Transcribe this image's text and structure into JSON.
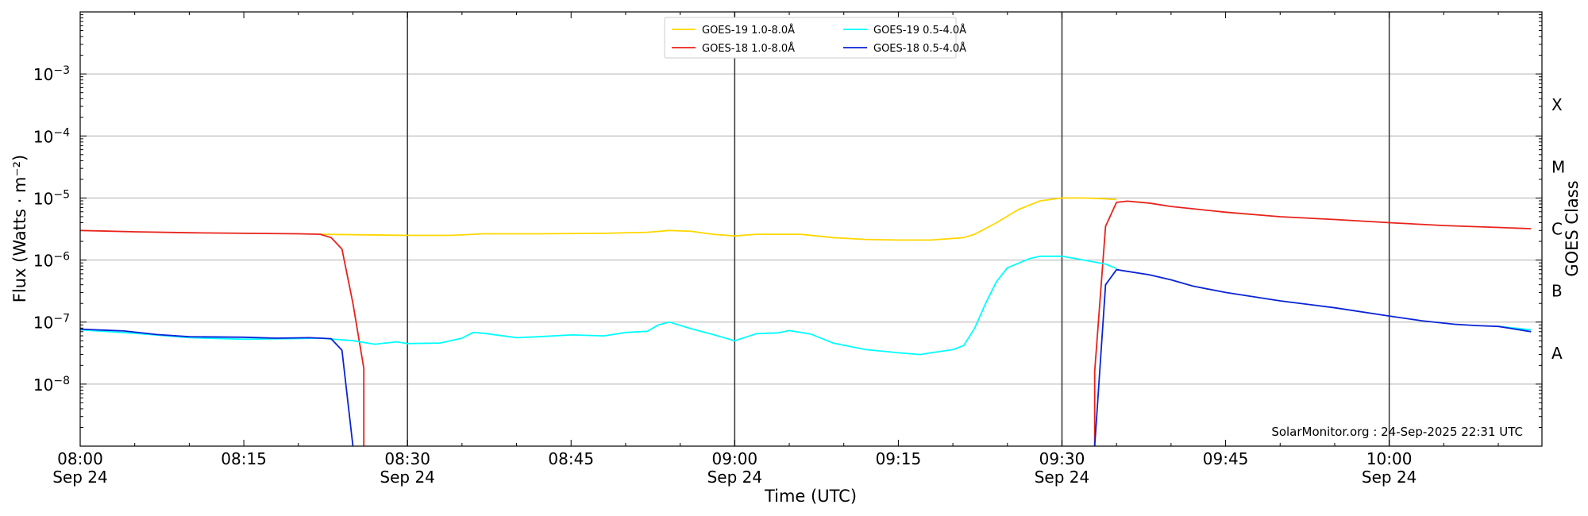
{
  "chart_data": {
    "type": "line",
    "title": "",
    "xlabel": "Time (UTC)",
    "ylabel": "Flux (Watts · m⁻²)",
    "y2label": "GOES Class",
    "yscale": "log",
    "ylim": [
      1e-09,
      0.01
    ],
    "xlim": [
      "2025-09-24 08:00",
      "2025-09-24 10:14"
    ],
    "x_ticks": [
      {
        "time": "08:00",
        "label": "08:00",
        "sub": "Sep 24"
      },
      {
        "time": "08:15",
        "label": "08:15",
        "sub": ""
      },
      {
        "time": "08:30",
        "label": "08:30",
        "sub": "Sep 24"
      },
      {
        "time": "08:45",
        "label": "08:45",
        "sub": ""
      },
      {
        "time": "09:00",
        "label": "09:00",
        "sub": "Sep 24"
      },
      {
        "time": "09:15",
        "label": "09:15",
        "sub": ""
      },
      {
        "time": "09:30",
        "label": "09:30",
        "sub": "Sep 24"
      },
      {
        "time": "09:45",
        "label": "09:45",
        "sub": ""
      },
      {
        "time": "10:00",
        "label": "10:00",
        "sub": "Sep 24"
      }
    ],
    "y_ticks": [
      {
        "value": 1e-08,
        "base": "10",
        "exp": "−8"
      },
      {
        "value": 1e-07,
        "base": "10",
        "exp": "−7"
      },
      {
        "value": 1e-06,
        "base": "10",
        "exp": "−6"
      },
      {
        "value": 1e-05,
        "base": "10",
        "exp": "−5"
      },
      {
        "value": 0.0001,
        "base": "10",
        "exp": "−4"
      },
      {
        "value": 0.001,
        "base": "10",
        "exp": "−3"
      }
    ],
    "goes_classes": [
      {
        "label": "A",
        "value": 3.16e-08
      },
      {
        "label": "B",
        "value": 3.16e-07
      },
      {
        "label": "C",
        "value": 3.16e-06
      },
      {
        "label": "M",
        "value": 3.16e-05
      },
      {
        "label": "X",
        "value": 0.000316
      }
    ],
    "vertical_lines": [
      "08:30",
      "09:00",
      "09:30",
      "10:00"
    ],
    "grid": "horizontal",
    "legend_position": "top-center",
    "series": [
      {
        "name": "GOES-19 1.0-8.0Å",
        "color": "#ffd700",
        "points": [
          [
            "08:22",
            2.6e-06
          ],
          [
            "08:26",
            2.55e-06
          ],
          [
            "08:30",
            2.5e-06
          ],
          [
            "08:34",
            2.5e-06
          ],
          [
            "08:37",
            2.65e-06
          ],
          [
            "08:42",
            2.65e-06
          ],
          [
            "08:48",
            2.7e-06
          ],
          [
            "08:52",
            2.8e-06
          ],
          [
            "08:54",
            3e-06
          ],
          [
            "08:56",
            2.9e-06
          ],
          [
            "08:58",
            2.6e-06
          ],
          [
            "09:00",
            2.45e-06
          ],
          [
            "09:02",
            2.6e-06
          ],
          [
            "09:06",
            2.6e-06
          ],
          [
            "09:09",
            2.3e-06
          ],
          [
            "09:12",
            2.15e-06
          ],
          [
            "09:15",
            2.1e-06
          ],
          [
            "09:18",
            2.1e-06
          ],
          [
            "09:21",
            2.3e-06
          ],
          [
            "09:22",
            2.6e-06
          ],
          [
            "09:24",
            4e-06
          ],
          [
            "09:26",
            6.5e-06
          ],
          [
            "09:28",
            9e-06
          ],
          [
            "09:30",
            1e-05
          ],
          [
            "09:32",
            1e-05
          ],
          [
            "09:34",
            9.7e-06
          ],
          [
            "09:35",
            9.4e-06
          ]
        ]
      },
      {
        "name": "GOES-18 1.0-8.0Å",
        "color": "#e8231b",
        "points": [
          [
            "08:00",
            3e-06
          ],
          [
            "08:05",
            2.85e-06
          ],
          [
            "08:10",
            2.75e-06
          ],
          [
            "08:15",
            2.7e-06
          ],
          [
            "08:20",
            2.65e-06
          ],
          [
            "08:22",
            2.6e-06
          ],
          [
            "08:23",
            2.3e-06
          ],
          [
            "08:24",
            1.5e-06
          ],
          [
            "08:25",
            2e-07
          ],
          [
            "08:26",
            1.8e-08
          ],
          [
            "08:26",
            1e-09
          ]
        ],
        "points_2": [
          [
            "09:33",
            1e-09
          ],
          [
            "09:33",
            1.6e-08
          ],
          [
            "09:34",
            3.5e-06
          ],
          [
            "09:35",
            8.5e-06
          ],
          [
            "09:36",
            8.9e-06
          ],
          [
            "09:38",
            8.3e-06
          ],
          [
            "09:40",
            7.3e-06
          ],
          [
            "09:45",
            5.9e-06
          ],
          [
            "09:50",
            5e-06
          ],
          [
            "09:55",
            4.5e-06
          ],
          [
            "10:00",
            4e-06
          ],
          [
            "10:05",
            3.6e-06
          ],
          [
            "10:10",
            3.35e-06
          ],
          [
            "10:13",
            3.2e-06
          ]
        ]
      },
      {
        "name": "GOES-19 0.5-4.0Å",
        "color": "#00ffff",
        "points": [
          [
            "08:00",
            7.5e-08
          ],
          [
            "08:05",
            6.6e-08
          ],
          [
            "08:10",
            5.6e-08
          ],
          [
            "08:15",
            5.3e-08
          ],
          [
            "08:22",
            5.5e-08
          ],
          [
            "08:25",
            5e-08
          ],
          [
            "08:27",
            4.4e-08
          ],
          [
            "08:29",
            4.8e-08
          ],
          [
            "08:30",
            4.5e-08
          ],
          [
            "08:33",
            4.6e-08
          ],
          [
            "08:35",
            5.5e-08
          ],
          [
            "08:36",
            6.8e-08
          ],
          [
            "08:37",
            6.6e-08
          ],
          [
            "08:40",
            5.6e-08
          ],
          [
            "08:42",
            5.8e-08
          ],
          [
            "08:45",
            6.2e-08
          ],
          [
            "08:48",
            6e-08
          ],
          [
            "08:50",
            6.8e-08
          ],
          [
            "08:52",
            7.1e-08
          ],
          [
            "08:53",
            9e-08
          ],
          [
            "08:54",
            1e-07
          ],
          [
            "08:56",
            7.8e-08
          ],
          [
            "08:58",
            6.3e-08
          ],
          [
            "09:00",
            5e-08
          ],
          [
            "09:02",
            6.5e-08
          ],
          [
            "09:04",
            6.7e-08
          ],
          [
            "09:05",
            7.3e-08
          ],
          [
            "09:07",
            6.4e-08
          ],
          [
            "09:09",
            4.6e-08
          ],
          [
            "09:12",
            3.6e-08
          ],
          [
            "09:15",
            3.2e-08
          ],
          [
            "09:17",
            3e-08
          ],
          [
            "09:18",
            3.2e-08
          ],
          [
            "09:20",
            3.6e-08
          ],
          [
            "09:21",
            4.2e-08
          ],
          [
            "09:22",
            8e-08
          ],
          [
            "09:23",
            2e-07
          ],
          [
            "09:24",
            4.5e-07
          ],
          [
            "09:25",
            7.5e-07
          ],
          [
            "09:27",
            1.05e-06
          ],
          [
            "09:28",
            1.15e-06
          ],
          [
            "09:30",
            1.15e-06
          ],
          [
            "09:32",
            1e-06
          ],
          [
            "09:34",
            8.6e-07
          ],
          [
            "09:35",
            7.3e-07
          ]
        ],
        "points_2": [
          [
            "10:10",
            8.5e-08
          ],
          [
            "10:13",
            7.5e-08
          ]
        ]
      },
      {
        "name": "GOES-18 0.5-4.0Å",
        "color": "#0a23d6",
        "points": [
          [
            "08:00",
            7.7e-08
          ],
          [
            "08:04",
            7.2e-08
          ],
          [
            "08:07",
            6.3e-08
          ],
          [
            "08:10",
            5.8e-08
          ],
          [
            "08:15",
            5.7e-08
          ],
          [
            "08:18",
            5.5e-08
          ],
          [
            "08:21",
            5.6e-08
          ],
          [
            "08:23",
            5.4e-08
          ],
          [
            "08:24",
            3.5e-08
          ],
          [
            "08:25",
            1e-09
          ]
        ],
        "points_2": [
          [
            "09:33",
            1e-09
          ],
          [
            "09:34",
            4e-07
          ],
          [
            "09:35",
            7e-07
          ],
          [
            "09:38",
            5.8e-07
          ],
          [
            "09:40",
            4.8e-07
          ],
          [
            "09:42",
            3.8e-07
          ],
          [
            "09:45",
            3e-07
          ],
          [
            "09:50",
            2.2e-07
          ],
          [
            "09:55",
            1.7e-07
          ],
          [
            "10:00",
            1.25e-07
          ],
          [
            "10:03",
            1.05e-07
          ],
          [
            "10:06",
            9.2e-08
          ],
          [
            "10:08",
            8.8e-08
          ],
          [
            "10:10",
            8.5e-08
          ],
          [
            "10:13",
            7e-08
          ]
        ]
      }
    ],
    "legend_order": [
      0,
      2,
      1,
      3
    ],
    "annotation": "SolarMonitor.org : 24-Sep-2025 22:31 UTC"
  }
}
